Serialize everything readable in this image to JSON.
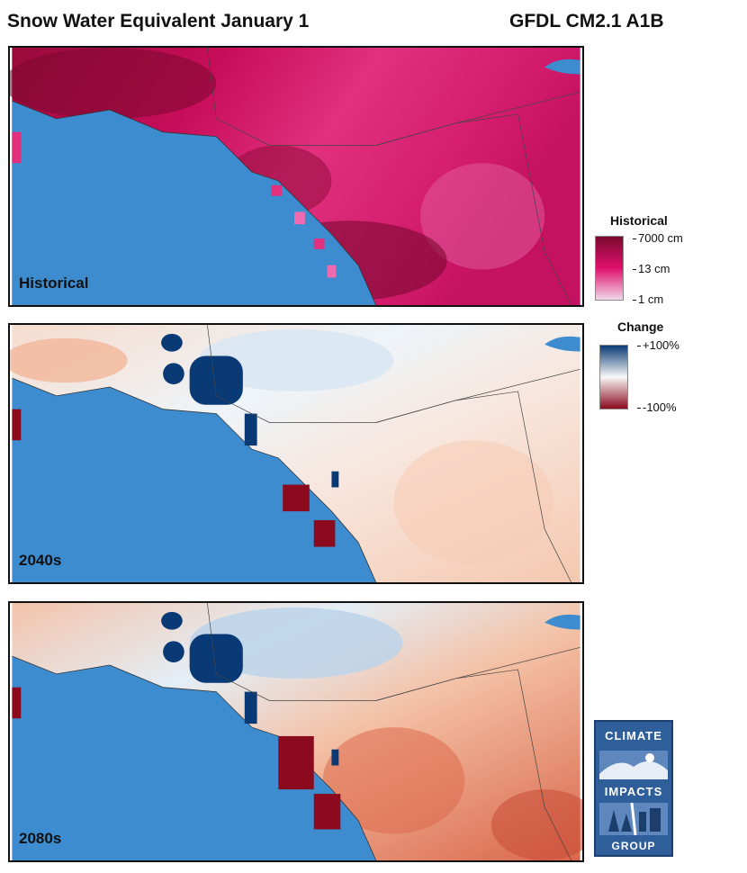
{
  "header": {
    "title": "Snow Water Equivalent January 1",
    "model": "GFDL CM2.1 A1B"
  },
  "panels": [
    {
      "label": "Historical"
    },
    {
      "label": "2040s"
    },
    {
      "label": "2080s"
    }
  ],
  "legend_historical": {
    "title": "Historical",
    "ticks": [
      "7000 cm",
      "13 cm",
      "1 cm"
    ],
    "colors": [
      "#7a0a2e",
      "#e0106e",
      "#f0d8e8"
    ]
  },
  "legend_change": {
    "title": "Change",
    "ticks": [
      "+100%",
      "-100%"
    ],
    "colors": [
      "#0a3a75",
      "#f7f7f7",
      "#8b0a1e"
    ]
  },
  "logo": {
    "lines": [
      "CLIMATE",
      "IMPACTS",
      "GROUP"
    ]
  },
  "colors": {
    "ocean": "#3d8ccf",
    "border": "#111111"
  }
}
